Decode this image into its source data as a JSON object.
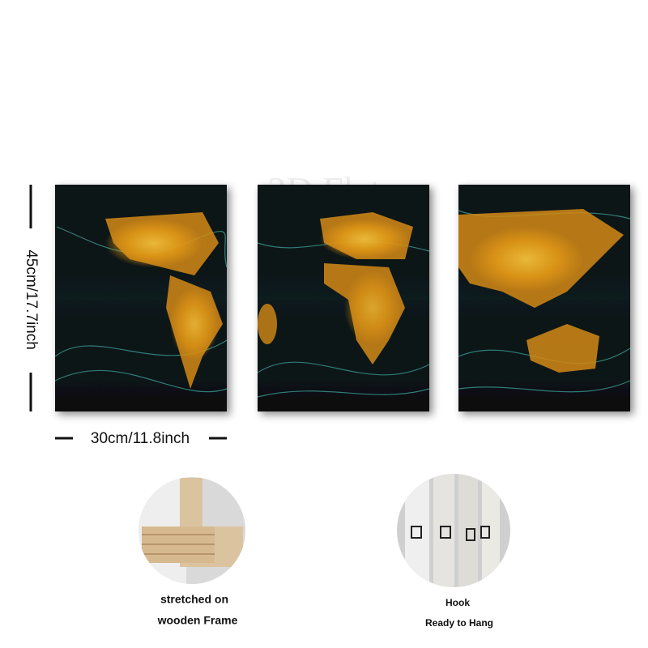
{
  "watermark": "2D Flat",
  "dimensions": {
    "height": "45cm/17.7inch",
    "width": "30cm/11.8inch"
  },
  "features": [
    {
      "lines": [
        "stretched on",
        "wooden Frame"
      ]
    },
    {
      "lines": [
        "Hook",
        "Ready to Hang"
      ]
    }
  ]
}
